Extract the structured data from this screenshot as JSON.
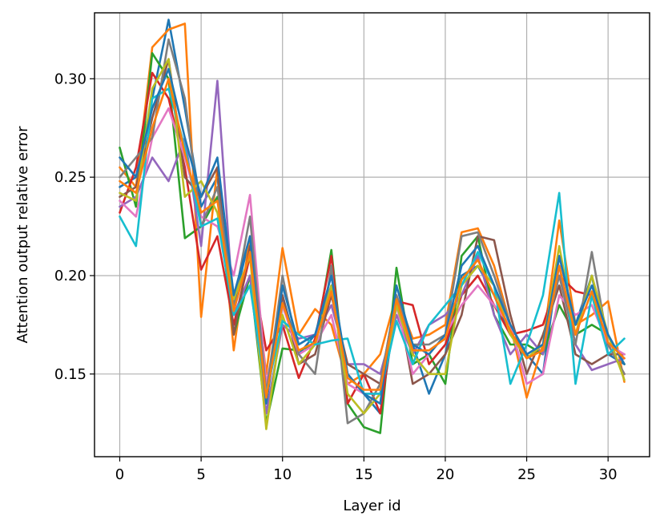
{
  "chart_data": {
    "type": "line",
    "title": "",
    "xlabel": "Layer id",
    "ylabel": "Attention output relative error",
    "xlim": [
      -1.55,
      32.55
    ],
    "ylim": [
      0.108,
      0.3335
    ],
    "xticks": [
      0,
      5,
      10,
      15,
      20,
      25,
      30
    ],
    "yticks": [
      0.15,
      0.2,
      0.25,
      0.3
    ],
    "ytick_labels": [
      "0.15",
      "0.20",
      "0.25",
      "0.30"
    ],
    "grid": true,
    "colors": [
      "#1f77b4",
      "#ff7f0e",
      "#2ca02c",
      "#d62728",
      "#9467bd",
      "#8c564b",
      "#e377c2",
      "#7f7f7f",
      "#bcbd22",
      "#17becf"
    ],
    "x": [
      0,
      1,
      2,
      3,
      4,
      5,
      6,
      7,
      8,
      9,
      10,
      11,
      12,
      13,
      14,
      15,
      16,
      17,
      18,
      19,
      20,
      21,
      22,
      23,
      24,
      25,
      26,
      27,
      28,
      29,
      30,
      31
    ],
    "series": [
      {
        "values": [
          0.245,
          0.25,
          0.29,
          0.33,
          0.285,
          0.235,
          0.25,
          0.185,
          0.22,
          0.135,
          0.19,
          0.16,
          0.17,
          0.195,
          0.15,
          0.14,
          0.13,
          0.185,
          0.165,
          0.14,
          0.16,
          0.2,
          0.205,
          0.19,
          0.17,
          0.16,
          0.15,
          0.21,
          0.175,
          0.2,
          0.16,
          0.155
        ]
      },
      {
        "values": [
          0.255,
          0.245,
          0.316,
          0.325,
          0.328,
          0.179,
          0.255,
          0.162,
          0.22,
          0.15,
          0.214,
          0.17,
          0.183,
          0.175,
          0.145,
          0.15,
          0.16,
          0.19,
          0.168,
          0.17,
          0.175,
          0.222,
          0.224,
          0.205,
          0.175,
          0.138,
          0.165,
          0.228,
          0.175,
          0.18,
          0.187,
          0.146
        ]
      },
      {
        "values": [
          0.265,
          0.235,
          0.313,
          0.3,
          0.219,
          0.225,
          0.24,
          0.17,
          0.2,
          0.125,
          0.163,
          0.162,
          0.165,
          0.213,
          0.135,
          0.123,
          0.12,
          0.204,
          0.155,
          0.16,
          0.145,
          0.21,
          0.22,
          0.18,
          0.165,
          0.165,
          0.16,
          0.185,
          0.17,
          0.175,
          0.17,
          0.155
        ]
      },
      {
        "values": [
          0.232,
          0.255,
          0.303,
          0.29,
          0.255,
          0.203,
          0.22,
          0.175,
          0.21,
          0.162,
          0.175,
          0.148,
          0.168,
          0.21,
          0.135,
          0.15,
          0.13,
          0.187,
          0.185,
          0.155,
          0.165,
          0.19,
          0.2,
          0.185,
          0.17,
          0.172,
          0.175,
          0.2,
          0.192,
          0.19,
          0.165,
          0.15
        ]
      },
      {
        "values": [
          0.235,
          0.24,
          0.26,
          0.248,
          0.27,
          0.215,
          0.299,
          0.18,
          0.2,
          0.13,
          0.175,
          0.168,
          0.17,
          0.185,
          0.155,
          0.155,
          0.15,
          0.18,
          0.16,
          0.175,
          0.18,
          0.19,
          0.21,
          0.18,
          0.16,
          0.17,
          0.16,
          0.205,
          0.165,
          0.152,
          0.155,
          0.158
        ]
      },
      {
        "values": [
          0.24,
          0.245,
          0.28,
          0.31,
          0.25,
          0.24,
          0.255,
          0.17,
          0.215,
          0.14,
          0.19,
          0.155,
          0.16,
          0.19,
          0.155,
          0.15,
          0.145,
          0.19,
          0.145,
          0.15,
          0.16,
          0.18,
          0.22,
          0.218,
          0.18,
          0.15,
          0.17,
          0.195,
          0.16,
          0.155,
          0.16,
          0.16
        ]
      },
      {
        "values": [
          0.238,
          0.23,
          0.27,
          0.285,
          0.26,
          0.23,
          0.225,
          0.2,
          0.241,
          0.145,
          0.185,
          0.16,
          0.165,
          0.18,
          0.145,
          0.14,
          0.14,
          0.185,
          0.15,
          0.16,
          0.17,
          0.185,
          0.195,
          0.185,
          0.175,
          0.145,
          0.15,
          0.19,
          0.18,
          0.185,
          0.165,
          0.16
        ]
      },
      {
        "values": [
          0.25,
          0.26,
          0.27,
          0.32,
          0.29,
          0.225,
          0.245,
          0.185,
          0.23,
          0.14,
          0.2,
          0.16,
          0.15,
          0.205,
          0.125,
          0.13,
          0.145,
          0.19,
          0.165,
          0.165,
          0.17,
          0.22,
          0.222,
          0.2,
          0.175,
          0.16,
          0.165,
          0.2,
          0.165,
          0.212,
          0.165,
          0.15
        ]
      },
      {
        "values": [
          0.242,
          0.238,
          0.295,
          0.31,
          0.24,
          0.248,
          0.232,
          0.188,
          0.21,
          0.122,
          0.18,
          0.155,
          0.165,
          0.195,
          0.14,
          0.13,
          0.14,
          0.185,
          0.16,
          0.15,
          0.15,
          0.195,
          0.205,
          0.195,
          0.17,
          0.158,
          0.165,
          0.215,
          0.17,
          0.2,
          0.17,
          0.147
        ]
      },
      {
        "values": [
          0.23,
          0.215,
          0.29,
          0.295,
          0.265,
          0.225,
          0.229,
          0.18,
          0.195,
          0.14,
          0.177,
          0.17,
          0.165,
          0.167,
          0.168,
          0.14,
          0.14,
          0.177,
          0.155,
          0.175,
          0.185,
          0.195,
          0.212,
          0.195,
          0.145,
          0.165,
          0.19,
          0.242,
          0.145,
          0.19,
          0.16,
          0.168
        ]
      },
      {
        "values": [
          0.26,
          0.25,
          0.285,
          0.305,
          0.27,
          0.24,
          0.26,
          0.19,
          0.22,
          0.135,
          0.195,
          0.165,
          0.17,
          0.2,
          0.15,
          0.14,
          0.135,
          0.195,
          0.165,
          0.16,
          0.17,
          0.205,
          0.215,
          0.195,
          0.175,
          0.16,
          0.165,
          0.21,
          0.175,
          0.195,
          0.17,
          0.155
        ]
      },
      {
        "values": [
          0.248,
          0.242,
          0.275,
          0.3,
          0.262,
          0.232,
          0.238,
          0.182,
          0.212,
          0.138,
          0.186,
          0.162,
          0.166,
          0.192,
          0.148,
          0.142,
          0.142,
          0.188,
          0.162,
          0.162,
          0.168,
          0.198,
          0.208,
          0.19,
          0.172,
          0.158,
          0.162,
          0.205,
          0.17,
          0.192,
          0.166,
          0.158
        ]
      }
    ]
  }
}
